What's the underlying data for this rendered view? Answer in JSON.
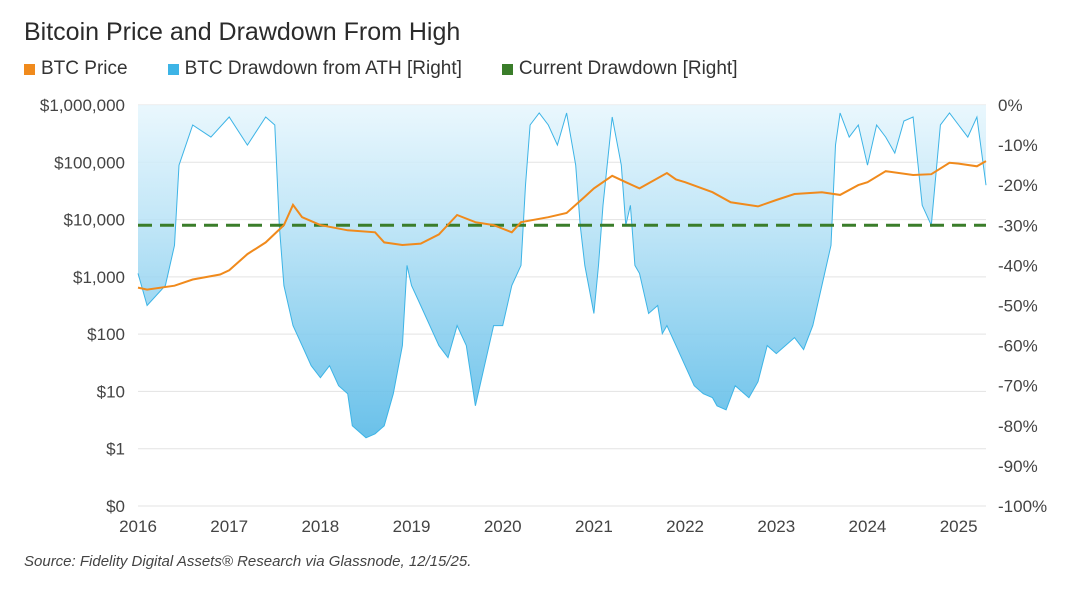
{
  "chart_data": {
    "type": "line",
    "title": "Bitcoin Price and Drawdown From High",
    "source": "Source: Fidelity Digital Assets® Research via Glassnode, 12/15/25.",
    "x_ticks": [
      "2016",
      "2017",
      "2018",
      "2019",
      "2020",
      "2021",
      "2022",
      "2023",
      "2024",
      "2025"
    ],
    "xlim": [
      2016,
      2025.3
    ],
    "y_left": {
      "scale": "log",
      "ticks": [
        "$1,000,000",
        "$100,000",
        "$10,000",
        "$1,000",
        "$100",
        "$10",
        "$1",
        "$0"
      ]
    },
    "y_right": {
      "ylim": [
        -100,
        0
      ],
      "ticks": [
        "0%",
        "-10%",
        "-20%",
        "-30%",
        "-40%",
        "-50%",
        "-60%",
        "-70%",
        "-80%",
        "-90%",
        "-100%"
      ]
    },
    "grid": true,
    "legend_placement": "top-left",
    "colors": {
      "price": "#f08a1c",
      "drawdown": "#3db4e6",
      "current": "#3a7d2a"
    },
    "series": [
      {
        "name": "BTC Price",
        "axis": "left",
        "x": [
          2016.0,
          2016.1,
          2016.4,
          2016.6,
          2016.9,
          2017.0,
          2017.2,
          2017.4,
          2017.6,
          2017.7,
          2017.8,
          2018.0,
          2018.3,
          2018.6,
          2018.7,
          2018.9,
          2019.1,
          2019.3,
          2019.5,
          2019.7,
          2019.9,
          2020.1,
          2020.2,
          2020.5,
          2020.7,
          2020.9,
          2021.0,
          2021.2,
          2021.35,
          2021.5,
          2021.8,
          2021.9,
          2022.0,
          2022.3,
          2022.5,
          2022.8,
          2023.0,
          2023.2,
          2023.5,
          2023.7,
          2023.9,
          2024.0,
          2024.2,
          2024.5,
          2024.7,
          2024.9,
          2025.0,
          2025.2,
          2025.3
        ],
        "values": [
          650,
          600,
          700,
          900,
          1100,
          1300,
          2500,
          4000,
          8000,
          18000,
          11000,
          8000,
          6500,
          6000,
          4000,
          3600,
          3800,
          5500,
          12000,
          9000,
          8000,
          6000,
          9000,
          11000,
          13000,
          25000,
          35000,
          58000,
          45000,
          35000,
          65000,
          50000,
          45000,
          30000,
          20000,
          17000,
          22000,
          28000,
          30000,
          27000,
          40000,
          45000,
          70000,
          60000,
          62000,
          98000,
          95000,
          85000,
          105000
        ]
      },
      {
        "name": "BTC Drawdown from ATH [Right]",
        "axis": "right",
        "x": [
          2016.0,
          2016.1,
          2016.3,
          2016.4,
          2016.45,
          2016.6,
          2016.8,
          2017.0,
          2017.2,
          2017.4,
          2017.5,
          2017.55,
          2017.6,
          2017.7,
          2017.8,
          2017.9,
          2018.0,
          2018.1,
          2018.2,
          2018.3,
          2018.35,
          2018.5,
          2018.6,
          2018.7,
          2018.8,
          2018.9,
          2018.95,
          2019.0,
          2019.1,
          2019.2,
          2019.3,
          2019.4,
          2019.5,
          2019.6,
          2019.7,
          2019.8,
          2019.9,
          2020.0,
          2020.1,
          2020.2,
          2020.25,
          2020.3,
          2020.4,
          2020.5,
          2020.6,
          2020.7,
          2020.8,
          2020.85,
          2020.9,
          2021.0,
          2021.05,
          2021.1,
          2021.2,
          2021.3,
          2021.35,
          2021.4,
          2021.45,
          2021.5,
          2021.6,
          2021.7,
          2021.75,
          2021.8,
          2021.9,
          2022.0,
          2022.1,
          2022.2,
          2022.3,
          2022.35,
          2022.45,
          2022.55,
          2022.7,
          2022.8,
          2022.9,
          2023.0,
          2023.1,
          2023.2,
          2023.3,
          2023.4,
          2023.5,
          2023.6,
          2023.65,
          2023.7,
          2023.8,
          2023.9,
          2024.0,
          2024.1,
          2024.2,
          2024.3,
          2024.4,
          2024.5,
          2024.6,
          2024.7,
          2024.8,
          2024.9,
          2025.0,
          2025.1,
          2025.2,
          2025.3
        ],
        "values": [
          -42,
          -50,
          -45,
          -35,
          -15,
          -5,
          -8,
          -3,
          -10,
          -3,
          -5,
          -30,
          -45,
          -55,
          -60,
          -65,
          -68,
          -65,
          -70,
          -72,
          -80,
          -83,
          -82,
          -80,
          -72,
          -60,
          -40,
          -45,
          -50,
          -55,
          -60,
          -63,
          -55,
          -60,
          -75,
          -65,
          -55,
          -55,
          -45,
          -40,
          -20,
          -5,
          -2,
          -5,
          -10,
          -2,
          -15,
          -30,
          -40,
          -52,
          -40,
          -25,
          -3,
          -15,
          -30,
          -25,
          -40,
          -42,
          -52,
          -50,
          -57,
          -55,
          -60,
          -65,
          -70,
          -72,
          -73,
          -75,
          -76,
          -70,
          -73,
          -69,
          -60,
          -62,
          -60,
          -58,
          -61,
          -55,
          -45,
          -35,
          -10,
          -2,
          -8,
          -5,
          -15,
          -5,
          -8,
          -12,
          -4,
          -3,
          -25,
          -30,
          -5,
          -2,
          -5,
          -8,
          -3,
          -20
        ]
      },
      {
        "name": "Current Drawdown [Right]",
        "axis": "right",
        "value": -30
      }
    ]
  }
}
